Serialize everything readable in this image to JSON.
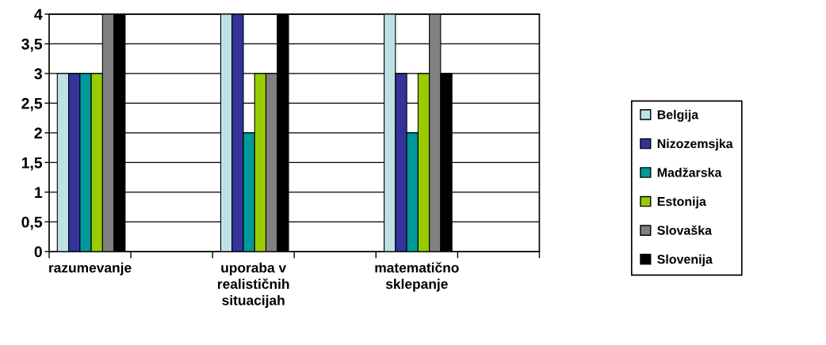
{
  "chart_data": {
    "type": "bar",
    "categories": [
      "razumevanje",
      null,
      "uporaba v\nrealističnih\nsituacijah",
      null,
      "matematično\nsklepanje",
      null
    ],
    "series": [
      {
        "name": "Belgija",
        "color": "#bee1e6",
        "values": [
          3,
          null,
          4,
          null,
          4,
          null
        ]
      },
      {
        "name": "Nizozemsjka",
        "color": "#333399",
        "values": [
          3,
          null,
          4,
          null,
          3,
          null
        ]
      },
      {
        "name": "Madžarska",
        "color": "#009999",
        "values": [
          3,
          null,
          2,
          null,
          2,
          null
        ]
      },
      {
        "name": "Estonija",
        "color": "#99cc00",
        "values": [
          3,
          null,
          3,
          null,
          3,
          null
        ]
      },
      {
        "name": "Slovaška",
        "color": "#808080",
        "values": [
          4,
          null,
          3,
          null,
          4,
          null
        ]
      },
      {
        "name": "Slovenija",
        "color": "#000000",
        "values": [
          4,
          null,
          4,
          null,
          3,
          null
        ]
      }
    ],
    "ylim": [
      0,
      4
    ],
    "yticks": [
      0,
      {
        "value": 0.5,
        "label": "0,5"
      },
      1,
      {
        "value": 1.5,
        "label": "1,5"
      },
      2,
      {
        "value": 2.5,
        "label": "2,5"
      },
      3,
      {
        "value": 3.5,
        "label": "3,5"
      },
      4
    ],
    "grid": "y",
    "legend": "right"
  }
}
